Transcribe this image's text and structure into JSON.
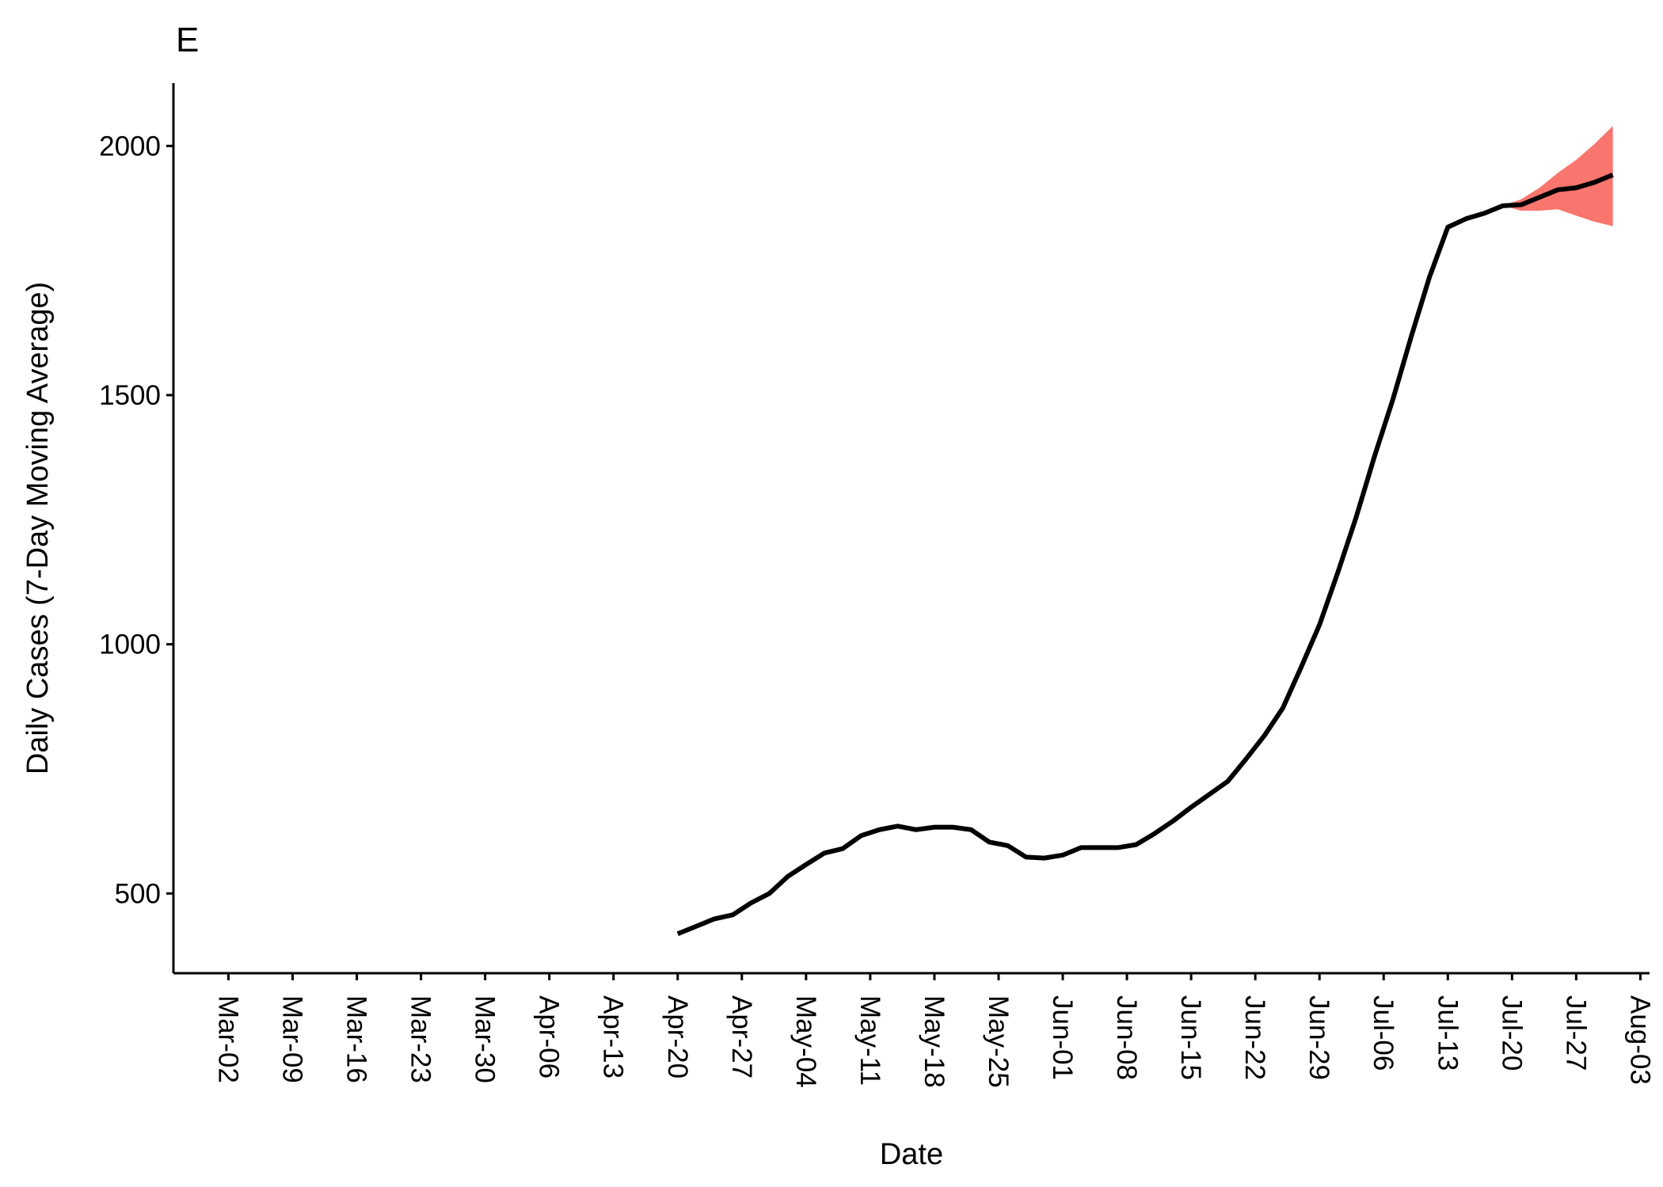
{
  "chart_data": {
    "type": "line",
    "title": "E",
    "x_label": "Date",
    "y_label": "Daily Cases (7-Day Moving Average)",
    "x": [
      "Apr-20",
      "Apr-22",
      "Apr-24",
      "Apr-26",
      "Apr-28",
      "Apr-30",
      "May-02",
      "May-04",
      "May-06",
      "May-08",
      "May-10",
      "May-12",
      "May-14",
      "May-16",
      "May-18",
      "May-20",
      "May-22",
      "May-24",
      "May-26",
      "May-28",
      "May-30",
      "Jun-01",
      "Jun-03",
      "Jun-05",
      "Jun-07",
      "Jun-09",
      "Jun-11",
      "Jun-13",
      "Jun-15",
      "Jun-17",
      "Jun-19",
      "Jun-21",
      "Jun-23",
      "Jun-25",
      "Jun-27",
      "Jun-29",
      "Jul-01",
      "Jul-03",
      "Jul-05",
      "Jul-07",
      "Jul-09",
      "Jul-11",
      "Jul-13",
      "Jul-15",
      "Jul-17",
      "Jul-19",
      "Jul-21",
      "Jul-23",
      "Jul-25",
      "Jul-27",
      "Jul-29",
      "Jul-31"
    ],
    "series": [
      {
        "color": "#000000",
        "values": [
          419,
          434,
          449,
          457,
          481,
          500,
          534,
          558,
          581,
          590,
          616,
          628,
          635,
          628,
          633,
          633,
          628,
          603,
          596,
          573,
          571,
          577,
          592,
          592,
          592,
          598,
          620,
          645,
          673,
          699,
          725,
          770,
          817,
          872,
          954,
          1039,
          1144,
          1255,
          1377,
          1491,
          1617,
          1737,
          1837,
          1854,
          1865,
          1880,
          1882,
          1897,
          1912,
          1916,
          1927,
          1942
        ]
      }
    ],
    "band": {
      "color": "#f8766d",
      "x": [
        "Jul-19",
        "Jul-21",
        "Jul-23",
        "Jul-25",
        "Jul-27",
        "Jul-29",
        "Jul-31"
      ],
      "lower": [
        1880,
        1870,
        1870,
        1873,
        1860,
        1848,
        1839
      ],
      "upper": [
        1880,
        1893,
        1916,
        1946,
        1972,
        2004,
        2040
      ]
    },
    "xlim": [
      "Feb-25",
      "Aug-04"
    ],
    "xticks": [
      "Mar-02",
      "Mar-09",
      "Mar-16",
      "Mar-23",
      "Mar-30",
      "Apr-06",
      "Apr-13",
      "Apr-20",
      "Apr-27",
      "May-04",
      "May-11",
      "May-18",
      "May-25",
      "Jun-01",
      "Jun-08",
      "Jun-15",
      "Jun-22",
      "Jun-29",
      "Jul-06",
      "Jul-13",
      "Jul-20",
      "Jul-27",
      "Aug-03"
    ],
    "ylim": [
      340,
      2126
    ],
    "yticks": [
      500,
      1000,
      1500,
      2000
    ],
    "grid": false
  }
}
